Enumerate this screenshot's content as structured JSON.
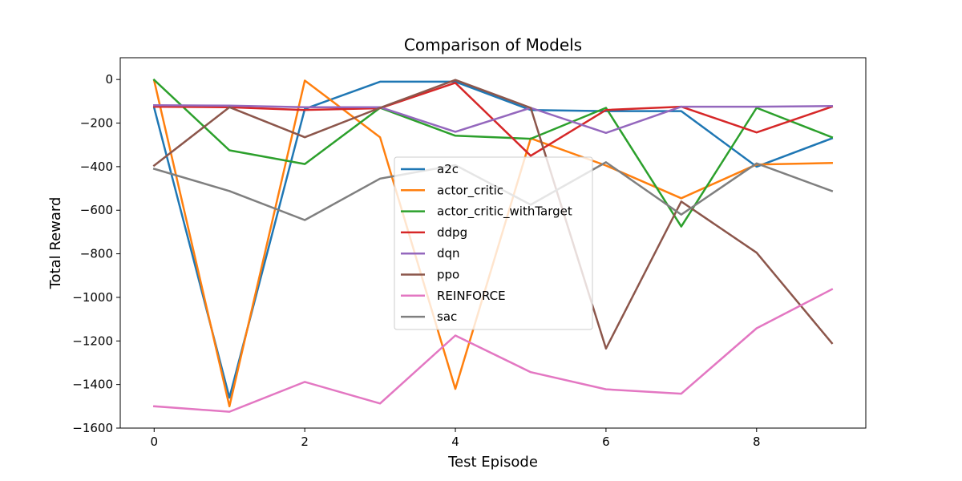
{
  "chart_data": {
    "type": "line",
    "title": "Comparison of Models",
    "xlabel": "Test Episode",
    "ylabel": "Total Reward",
    "xlim": [
      -0.45,
      9.45
    ],
    "ylim": [
      -1600,
      100
    ],
    "xticks": [
      0,
      2,
      4,
      6,
      8
    ],
    "yticks": [
      -1600,
      -1400,
      -1200,
      -1000,
      -800,
      -600,
      -400,
      -200,
      0
    ],
    "grid": false,
    "legend_position": "center",
    "x": [
      0,
      1,
      2,
      3,
      4,
      5,
      6,
      7,
      8,
      9
    ],
    "series": [
      {
        "name": "a2c",
        "color": "#1f77b4",
        "values": [
          -130,
          -1460,
          -135,
          -10,
          -10,
          -140,
          -145,
          -145,
          -400,
          -270
        ]
      },
      {
        "name": "actor_critic",
        "color": "#ff7f0e",
        "values": [
          -5,
          -1500,
          -5,
          -265,
          -1420,
          -270,
          -395,
          -545,
          -390,
          -383
        ]
      },
      {
        "name": "actor_critic_withTarget",
        "color": "#2ca02c",
        "values": [
          -2,
          -325,
          -388,
          -130,
          -258,
          -272,
          -130,
          -675,
          -130,
          -265
        ]
      },
      {
        "name": "ddpg",
        "color": "#d62728",
        "values": [
          -125,
          -127,
          -140,
          -132,
          -15,
          -350,
          -140,
          -125,
          -243,
          -125
        ]
      },
      {
        "name": "dqn",
        "color": "#9467bd",
        "values": [
          -118,
          -120,
          -127,
          -127,
          -240,
          -130,
          -245,
          -125,
          -125,
          -122
        ]
      },
      {
        "name": "ppo",
        "color": "#8c564b",
        "values": [
          -395,
          -127,
          -265,
          -130,
          -2,
          -130,
          -1235,
          -560,
          -795,
          -1210
        ]
      },
      {
        "name": "REINFORCE",
        "color": "#e377c2",
        "values": [
          -1500,
          -1525,
          -1388,
          -1487,
          -1175,
          -1343,
          -1422,
          -1442,
          -1142,
          -963
        ]
      },
      {
        "name": "sac",
        "color": "#7f7f7f",
        "values": [
          -410,
          -512,
          -645,
          -455,
          -393,
          -575,
          -380,
          -620,
          -385,
          -512
        ]
      }
    ]
  }
}
